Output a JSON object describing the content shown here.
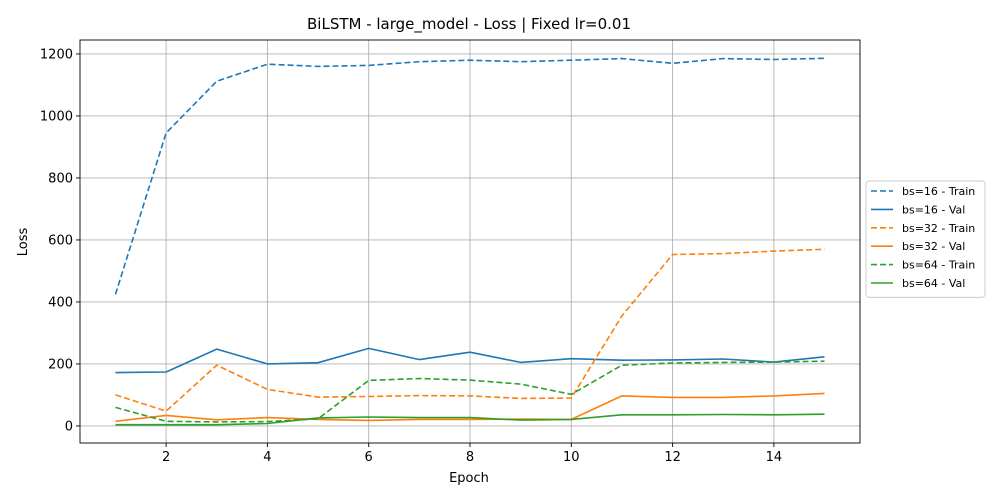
{
  "chart_data": {
    "type": "line",
    "title": "BiLSTM - large_model - Loss | Fixed lr=0.01",
    "xlabel": "Epoch",
    "ylabel": "Loss",
    "xlim": [
      0.3,
      15.7
    ],
    "ylim": [
      -55,
      1245
    ],
    "xticks": [
      2,
      4,
      6,
      8,
      10,
      12,
      14
    ],
    "yticks": [
      0,
      200,
      400,
      600,
      800,
      1000,
      1200
    ],
    "grid": true,
    "legend_position": "outside-right",
    "x": [
      1,
      2,
      3,
      4,
      5,
      6,
      7,
      8,
      9,
      10,
      11,
      12,
      13,
      14,
      15
    ],
    "series": [
      {
        "name": "bs=16 - Train",
        "color": "#1f77b4",
        "style": "dashed",
        "values": [
          425,
          945,
          1112,
          1167,
          1160,
          1163,
          1175,
          1180,
          1175,
          1180,
          1185,
          1170,
          1185,
          1182,
          1186
        ]
      },
      {
        "name": "bs=16 - Val",
        "color": "#1f77b4",
        "style": "solid",
        "values": [
          172,
          174,
          248,
          200,
          204,
          250,
          214,
          238,
          205,
          217,
          212,
          213,
          216,
          206,
          223
        ]
      },
      {
        "name": "bs=32 - Train",
        "color": "#ff7f0e",
        "style": "dashed",
        "values": [
          100,
          48,
          196,
          118,
          93,
          95,
          98,
          97,
          89,
          90,
          355,
          553,
          556,
          564,
          570
        ]
      },
      {
        "name": "bs=32 - Val",
        "color": "#ff7f0e",
        "style": "solid",
        "values": [
          15,
          34,
          20,
          27,
          21,
          18,
          21,
          21,
          22,
          21,
          97,
          92,
          92,
          97,
          105
        ]
      },
      {
        "name": "bs=64 - Train",
        "color": "#2ca02c",
        "style": "dashed",
        "values": [
          60,
          15,
          13,
          14,
          23,
          147,
          153,
          148,
          135,
          102,
          196,
          203,
          205,
          206,
          209
        ]
      },
      {
        "name": "bs=64 - Val",
        "color": "#2ca02c",
        "style": "solid",
        "values": [
          4,
          4,
          4,
          8,
          26,
          29,
          27,
          27,
          19,
          21,
          36,
          36,
          37,
          36,
          38
        ]
      }
    ]
  }
}
